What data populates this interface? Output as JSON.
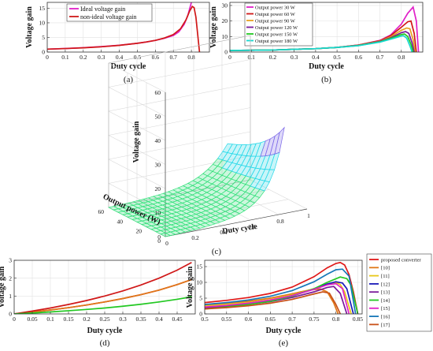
{
  "chart_data": [
    {
      "id": "a",
      "type": "line",
      "caption": "(a)",
      "xlabel": "Duty cycle",
      "ylabel": "Voltage gain",
      "xlim": [
        0,
        0.9
      ],
      "ylim": [
        0,
        17
      ],
      "xticks": [
        0,
        0.1,
        0.2,
        0.3,
        0.4,
        0.5,
        0.6,
        0.7,
        0.8
      ],
      "yticks": [
        0,
        5,
        10,
        15
      ],
      "grid": true,
      "legend": "top-left",
      "series": [
        {
          "name": "Ideal voltage gain",
          "color": "#e020c8",
          "x": [
            0,
            0.1,
            0.2,
            0.3,
            0.4,
            0.5,
            0.55,
            0.6,
            0.65,
            0.7,
            0.73,
            0.76,
            0.78,
            0.8
          ],
          "y": [
            1.0,
            1.22,
            1.5,
            1.86,
            2.33,
            3.0,
            3.44,
            4.0,
            4.71,
            5.67,
            6.9,
            9.5,
            12.5,
            17.0
          ]
        },
        {
          "name": "non-ideal voltage gain",
          "color": "#d01818",
          "x": [
            0,
            0.1,
            0.2,
            0.3,
            0.4,
            0.5,
            0.55,
            0.6,
            0.65,
            0.7,
            0.74,
            0.77,
            0.79,
            0.805,
            0.815,
            0.825,
            0.835,
            0.845
          ],
          "y": [
            1.0,
            1.2,
            1.45,
            1.8,
            2.3,
            3.0,
            3.45,
            4.0,
            4.8,
            6.0,
            8.0,
            11.0,
            14.0,
            15.6,
            15.2,
            12.0,
            6.0,
            0
          ]
        }
      ]
    },
    {
      "id": "b",
      "type": "line",
      "caption": "(b)",
      "xlabel": "Duty cycle",
      "ylabel": "Voltage gain",
      "xlim": [
        0,
        0.9
      ],
      "ylim": [
        0,
        32
      ],
      "xticks": [
        0,
        0.1,
        0.2,
        0.3,
        0.4,
        0.5,
        0.6,
        0.7,
        0.8
      ],
      "yticks": [
        0,
        10,
        20,
        30
      ],
      "grid": true,
      "legend": "top-left",
      "series": [
        {
          "name": "Output power 30 W",
          "color": "#e020c8",
          "x": [
            0,
            0.2,
            0.4,
            0.5,
            0.6,
            0.7,
            0.75,
            0.8,
            0.83,
            0.855,
            0.87,
            0.88
          ],
          "y": [
            1.0,
            1.3,
            2.2,
            3.0,
            4.5,
            7.5,
            11.0,
            18.0,
            25.0,
            29.0,
            20.0,
            0
          ]
        },
        {
          "name": "Output power 60 W",
          "color": "#d01818",
          "x": [
            0,
            0.2,
            0.4,
            0.5,
            0.6,
            0.7,
            0.75,
            0.8,
            0.83,
            0.845,
            0.86,
            0.87
          ],
          "y": [
            1.0,
            1.3,
            2.2,
            3.0,
            4.5,
            7.3,
            10.5,
            16.0,
            19.5,
            20.0,
            12.0,
            0
          ]
        },
        {
          "name": "Output power 90 W",
          "color": "#e8a020",
          "x": [
            0,
            0.2,
            0.4,
            0.5,
            0.6,
            0.7,
            0.75,
            0.8,
            0.825,
            0.84,
            0.855,
            0.865
          ],
          "y": [
            1.0,
            1.3,
            2.2,
            3.0,
            4.4,
            7.0,
            9.8,
            14.0,
            15.5,
            15.0,
            8.0,
            0
          ]
        },
        {
          "name": "Output power 120 W",
          "color": "#7a1a9a",
          "x": [
            0,
            0.2,
            0.4,
            0.5,
            0.6,
            0.7,
            0.75,
            0.8,
            0.82,
            0.835,
            0.85,
            0.86
          ],
          "y": [
            1.0,
            1.3,
            2.2,
            3.0,
            4.3,
            6.8,
            9.2,
            12.5,
            13.2,
            12.0,
            6.0,
            0
          ]
        },
        {
          "name": "Output power 150 W",
          "color": "#22c822",
          "x": [
            0,
            0.2,
            0.4,
            0.5,
            0.6,
            0.7,
            0.75,
            0.8,
            0.815,
            0.83,
            0.845,
            0.855
          ],
          "y": [
            1.0,
            1.3,
            2.2,
            3.0,
            4.2,
            6.6,
            8.8,
            11.3,
            11.6,
            10.0,
            5.0,
            0
          ]
        },
        {
          "name": "Output power 180 W",
          "color": "#18d8d0",
          "x": [
            0,
            0.2,
            0.4,
            0.5,
            0.6,
            0.7,
            0.75,
            0.8,
            0.81,
            0.825,
            0.84,
            0.85
          ],
          "y": [
            1.0,
            1.3,
            2.2,
            3.0,
            4.1,
            6.4,
            8.3,
            10.3,
            10.5,
            9.0,
            4.0,
            0
          ]
        }
      ]
    },
    {
      "id": "c",
      "type": "surface",
      "caption": "(c)",
      "xlabel": "Duty cycle",
      "ylabel": "Output power (W)",
      "zlabel": "Voltage gain",
      "xlim": [
        0,
        1
      ],
      "ylim": [
        0,
        60
      ],
      "zlim": [
        0,
        60
      ],
      "xticks": [
        0,
        0.2,
        0.4,
        0.6,
        0.8,
        1
      ],
      "yticks": [
        0,
        20,
        40,
        60
      ],
      "zticks": [
        0,
        10,
        20,
        30,
        40,
        50,
        60
      ],
      "grid": true,
      "colormap": [
        "#33e07a",
        "#22d8e8",
        "#7a66e8",
        "#d030d8",
        "#e02020"
      ]
    },
    {
      "id": "d",
      "type": "line",
      "caption": "(d)",
      "xlabel": "Duty cycle",
      "ylabel": "Voltage gain",
      "xlim": [
        0,
        0.5
      ],
      "ylim": [
        0,
        3
      ],
      "xticks": [
        0,
        0.05,
        0.1,
        0.15,
        0.2,
        0.25,
        0.3,
        0.35,
        0.4,
        0.45
      ],
      "yticks": [
        0,
        1,
        2,
        3
      ],
      "grid": true,
      "series": [
        {
          "color": "#d01818",
          "x": [
            0,
            0.05,
            0.1,
            0.15,
            0.2,
            0.25,
            0.3,
            0.35,
            0.4,
            0.45,
            0.49
          ],
          "y": [
            0,
            0.1,
            0.22,
            0.35,
            0.5,
            0.67,
            0.86,
            1.08,
            1.33,
            1.64,
            1.92
          ]
        },
        {
          "color": "#e07818",
          "x": [
            0,
            0.05,
            0.1,
            0.15,
            0.2,
            0.25,
            0.3,
            0.35,
            0.4,
            0.45,
            0.49
          ],
          "y": [
            0,
            0.1,
            0.22,
            0.35,
            0.5,
            0.67,
            0.86,
            1.08,
            1.33,
            1.64,
            1.92
          ]
        },
        {
          "color": "#d01818",
          "x": [
            0,
            0.05,
            0.1,
            0.15,
            0.2,
            0.25,
            0.3,
            0.35,
            0.4,
            0.45,
            0.49
          ],
          "y": [
            0,
            0.16,
            0.33,
            0.53,
            0.75,
            1.0,
            1.29,
            1.62,
            2.0,
            2.45,
            2.88
          ]
        },
        {
          "color": "#22c822",
          "x": [
            0,
            0.05,
            0.1,
            0.15,
            0.2,
            0.25,
            0.3,
            0.35,
            0.4,
            0.45,
            0.49
          ],
          "y": [
            0,
            0.05,
            0.11,
            0.18,
            0.25,
            0.33,
            0.43,
            0.54,
            0.67,
            0.82,
            0.96
          ]
        }
      ]
    },
    {
      "id": "e",
      "type": "line",
      "caption": "(e)",
      "xlabel": "Duty cycle",
      "ylabel": "Voltage gain",
      "xlim": [
        0.5,
        0.86
      ],
      "ylim": [
        0,
        17
      ],
      "xticks": [
        0.5,
        0.55,
        0.6,
        0.65,
        0.7,
        0.75,
        0.8,
        0.85
      ],
      "yticks": [
        0,
        5,
        10,
        15
      ],
      "grid": true,
      "legend": "right-outside",
      "series": [
        {
          "name": "proposed converter",
          "color": "#e01818",
          "x": [
            0.5,
            0.55,
            0.6,
            0.65,
            0.7,
            0.75,
            0.78,
            0.8,
            0.81,
            0.82,
            0.83,
            0.84,
            0.85
          ],
          "y": [
            3.6,
            4.3,
            5.2,
            6.5,
            8.5,
            11.8,
            14.6,
            16.0,
            16.3,
            15.5,
            12.5,
            7.0,
            0
          ]
        },
        {
          "name": "[10]",
          "color": "#e07818",
          "x": [
            0.5,
            0.55,
            0.6,
            0.65,
            0.7,
            0.74,
            0.765,
            0.78,
            0.795,
            0.805
          ],
          "y": [
            2.8,
            3.3,
            4.0,
            5.0,
            6.4,
            7.6,
            7.9,
            7.0,
            3.5,
            0
          ]
        },
        {
          "name": "[11]",
          "color": "#e8c818",
          "x": [
            0.5,
            0.55,
            0.6,
            0.65,
            0.7,
            0.75,
            0.78,
            0.8,
            0.81,
            0.82,
            0.835
          ],
          "y": [
            2.5,
            3.0,
            3.6,
            4.5,
            6.0,
            8.0,
            9.5,
            10.0,
            9.3,
            7.0,
            0
          ]
        },
        {
          "name": "[12]",
          "color": "#1a1ab8",
          "x": [
            0.5,
            0.55,
            0.6,
            0.65,
            0.7,
            0.75,
            0.78,
            0.8,
            0.815,
            0.825,
            0.84
          ],
          "y": [
            2.0,
            2.6,
            3.3,
            4.3,
            5.8,
            7.9,
            9.5,
            10.2,
            9.8,
            8.0,
            0
          ]
        },
        {
          "name": "[13]",
          "color": "#7a1a9a",
          "x": [
            0.5,
            0.55,
            0.6,
            0.65,
            0.7,
            0.75,
            0.78,
            0.795,
            0.81,
            0.825
          ],
          "y": [
            2.0,
            2.5,
            3.1,
            3.9,
            5.2,
            7.0,
            8.4,
            8.7,
            6.5,
            0
          ]
        },
        {
          "name": "[14]",
          "color": "#22c822",
          "x": [
            0.5,
            0.55,
            0.6,
            0.65,
            0.7,
            0.75,
            0.78,
            0.81,
            0.825,
            0.835,
            0.85
          ],
          "y": [
            1.6,
            2.2,
            3.0,
            4.0,
            5.6,
            8.0,
            10.0,
            11.7,
            11.2,
            9.0,
            0
          ]
        },
        {
          "name": "[15]",
          "color": "#e020c8",
          "x": [
            0.5,
            0.55,
            0.6,
            0.65,
            0.7,
            0.75,
            0.78,
            0.8,
            0.815,
            0.83
          ],
          "y": [
            2.2,
            2.7,
            3.4,
            4.4,
            5.8,
            7.8,
            9.2,
            9.6,
            8.0,
            0
          ]
        },
        {
          "name": "[16]",
          "color": "#1878b8",
          "x": [
            0.5,
            0.55,
            0.6,
            0.65,
            0.7,
            0.75,
            0.78,
            0.8,
            0.815,
            0.83,
            0.845
          ],
          "y": [
            3.0,
            3.6,
            4.4,
            5.6,
            7.4,
            10.2,
            12.6,
            14.0,
            14.2,
            12.0,
            0
          ]
        },
        {
          "name": "[17]",
          "color": "#c85018",
          "x": [
            0.5,
            0.55,
            0.6,
            0.65,
            0.7,
            0.74,
            0.77,
            0.785,
            0.8,
            0.81
          ],
          "y": [
            1.6,
            2.0,
            2.6,
            3.4,
            4.6,
            6.0,
            7.0,
            6.6,
            3.0,
            0
          ]
        }
      ]
    }
  ]
}
